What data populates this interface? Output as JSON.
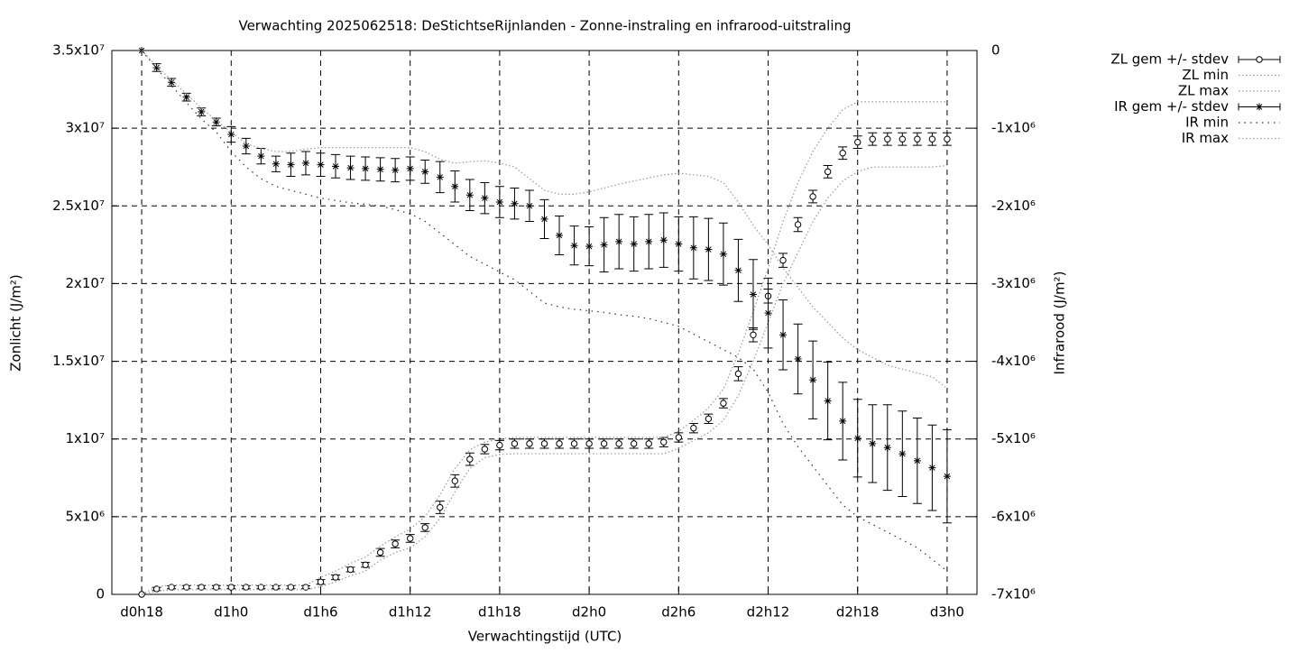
{
  "chart_data": {
    "type": "line",
    "title": "Verwachting 2025062518: DeStichtseRijnlanden - Zonne-instraling en infrarood-uitstraling",
    "x_label": "Verwachtingstijd (UTC)",
    "y_label": "Zonlicht (J/m²)",
    "y2_label": "Infrarood (J/m²)",
    "grid": true,
    "legend": "outside-top-right",
    "xlim": [
      16,
      74
    ],
    "xticks": [
      {
        "value": 18,
        "label": "d0h18"
      },
      {
        "value": 24,
        "label": "d1h0"
      },
      {
        "value": 30,
        "label": "d1h6"
      },
      {
        "value": 36,
        "label": "d1h12"
      },
      {
        "value": 42,
        "label": "d1h18"
      },
      {
        "value": 48,
        "label": "d2h0"
      },
      {
        "value": 54,
        "label": "d2h6"
      },
      {
        "value": 60,
        "label": "d2h12"
      },
      {
        "value": 66,
        "label": "d2h18"
      },
      {
        "value": 72,
        "label": "d3h0"
      }
    ],
    "ylim": [
      0,
      35000000
    ],
    "yticks": [
      0,
      {
        "value": 5000000,
        "label": "5x10⁶"
      },
      {
        "value": 10000000,
        "label": "1x10⁷"
      },
      {
        "value": 15000000,
        "label": "1.5x10⁷"
      },
      {
        "value": 20000000,
        "label": "2x10⁷"
      },
      {
        "value": 25000000,
        "label": "2.5x10⁷"
      },
      {
        "value": 30000000,
        "label": "3x10⁷"
      },
      {
        "value": 35000000,
        "label": "3.5x10⁷"
      }
    ],
    "y2lim": [
      -7000000,
      0
    ],
    "y2ticks": [
      0,
      {
        "value": -1000000,
        "label": "-1x10⁶"
      },
      {
        "value": -2000000,
        "label": "-2x10⁶"
      },
      {
        "value": -3000000,
        "label": "-3x10⁶"
      },
      {
        "value": -4000000,
        "label": "-4x10⁶"
      },
      {
        "value": -5000000,
        "label": "-5x10⁶"
      },
      {
        "value": -6000000,
        "label": "-6x10⁶"
      },
      {
        "value": -7000000,
        "label": "-7x10⁶"
      }
    ],
    "x": [
      18,
      19,
      20,
      21,
      22,
      23,
      24,
      25,
      26,
      27,
      28,
      29,
      30,
      31,
      32,
      33,
      34,
      35,
      36,
      37,
      38,
      39,
      40,
      41,
      42,
      43,
      44,
      45,
      46,
      47,
      48,
      49,
      50,
      51,
      52,
      53,
      54,
      55,
      56,
      57,
      58,
      59,
      60,
      61,
      62,
      63,
      64,
      65,
      66,
      67,
      68,
      69,
      70,
      71,
      72
    ],
    "series": [
      {
        "name": "ZL gem +/- stdev",
        "color": "#000000",
        "style": "errorbars",
        "marker": "circle",
        "values": [
          0,
          350000,
          460000,
          460000,
          460000,
          460000,
          460000,
          460000,
          460000,
          460000,
          460000,
          460000,
          800000,
          1100000,
          1600000,
          1900000,
          2700000,
          3250000,
          3600000,
          4300000,
          5600000,
          7300000,
          8700000,
          9350000,
          9600000,
          9700000,
          9700000,
          9700000,
          9700000,
          9700000,
          9700000,
          9700000,
          9700000,
          9700000,
          9700000,
          9800000,
          10100000,
          10700000,
          11300000,
          12300000,
          14200000,
          16700000,
          19200000,
          21500000,
          23800000,
          25600000,
          27200000,
          28400000,
          29100000,
          29300000,
          29300000,
          29300000,
          29300000,
          29300000,
          29300000
        ],
        "errors": [
          0,
          100000,
          100000,
          100000,
          100000,
          100000,
          100000,
          100000,
          100000,
          100000,
          100000,
          100000,
          150000,
          150000,
          150000,
          150000,
          250000,
          250000,
          250000,
          250000,
          400000,
          400000,
          400000,
          300000,
          300000,
          300000,
          300000,
          300000,
          300000,
          300000,
          300000,
          300000,
          300000,
          300000,
          300000,
          300000,
          300000,
          300000,
          300000,
          300000,
          450000,
          450000,
          450000,
          450000,
          450000,
          400000,
          400000,
          400000,
          400000,
          400000,
          400000,
          400000,
          400000,
          400000,
          400000
        ]
      },
      {
        "name": "ZL min",
        "color": "#999999",
        "style": "dotted",
        "values": [
          0,
          200000,
          300000,
          300000,
          300000,
          300000,
          300000,
          300000,
          300000,
          300000,
          300000,
          300000,
          500000,
          800000,
          1200000,
          1500000,
          2200000,
          2700000,
          3000000,
          3700000,
          4900000,
          6600000,
          8100000,
          8800000,
          9000000,
          9050000,
          9050000,
          9050000,
          9050000,
          9050000,
          9050000,
          9050000,
          9050000,
          9050000,
          9050000,
          9050000,
          9400000,
          9900000,
          10400000,
          11200000,
          12800000,
          15000000,
          17500000,
          20000000,
          22000000,
          24000000,
          25500000,
          26600000,
          27200000,
          27500000,
          27500000,
          27500000,
          27500000,
          27500000,
          27600000
        ]
      },
      {
        "name": "ZL max",
        "color": "#999999",
        "style": "dotted",
        "values": [
          0,
          500000,
          600000,
          600000,
          600000,
          600000,
          600000,
          600000,
          600000,
          600000,
          600000,
          600000,
          1100000,
          1500000,
          2000000,
          2400000,
          3100000,
          3700000,
          4200000,
          5000000,
          6400000,
          8100000,
          9300000,
          9800000,
          10000000,
          10100000,
          10100000,
          10100000,
          10100000,
          10100000,
          10100000,
          10100000,
          10100000,
          10100000,
          10100000,
          10100000,
          10500000,
          11200000,
          12000000,
          13200000,
          15500000,
          18200000,
          21000000,
          24000000,
          26500000,
          28500000,
          30000000,
          31200000,
          31700000,
          31700000,
          31700000,
          31700000,
          31700000,
          31700000,
          31700000
        ]
      },
      {
        "name": "IR gem +/- stdev",
        "color": "#000000",
        "style": "errorbars",
        "marker": "star",
        "axis": "y2",
        "values": [
          0,
          -220000,
          -410000,
          -600000,
          -790000,
          -920000,
          -1080000,
          -1230000,
          -1360000,
          -1460000,
          -1470000,
          -1450000,
          -1470000,
          -1490000,
          -1510000,
          -1520000,
          -1530000,
          -1540000,
          -1520000,
          -1560000,
          -1630000,
          -1750000,
          -1860000,
          -1900000,
          -1950000,
          -1970000,
          -2000000,
          -2170000,
          -2380000,
          -2510000,
          -2520000,
          -2500000,
          -2460000,
          -2490000,
          -2460000,
          -2440000,
          -2490000,
          -2540000,
          -2560000,
          -2620000,
          -2830000,
          -3140000,
          -3380000,
          -3660000,
          -3970000,
          -4240000,
          -4510000,
          -4770000,
          -4990000,
          -5060000,
          -5110000,
          -5190000,
          -5280000,
          -5370000,
          -5480000
        ],
        "errors": [
          0,
          50000,
          50000,
          50000,
          50000,
          50000,
          100000,
          100000,
          100000,
          100000,
          150000,
          150000,
          150000,
          150000,
          150000,
          150000,
          150000,
          150000,
          150000,
          150000,
          200000,
          200000,
          200000,
          200000,
          200000,
          200000,
          200000,
          250000,
          250000,
          250000,
          250000,
          350000,
          350000,
          350000,
          350000,
          350000,
          350000,
          400000,
          400000,
          400000,
          400000,
          450000,
          450000,
          450000,
          450000,
          500000,
          500000,
          500000,
          500000,
          500000,
          550000,
          550000,
          550000,
          550000,
          600000
        ]
      },
      {
        "name": "IR min",
        "color": "#333333",
        "style": "sparse-dotted",
        "axis": "y2",
        "values": [
          0,
          -230000,
          -450000,
          -670000,
          -880000,
          -1050000,
          -1300000,
          -1500000,
          -1650000,
          -1750000,
          -1800000,
          -1850000,
          -1900000,
          -1930000,
          -1960000,
          -1980000,
          -2000000,
          -2050000,
          -2100000,
          -2200000,
          -2350000,
          -2500000,
          -2650000,
          -2750000,
          -2850000,
          -2950000,
          -3100000,
          -3250000,
          -3300000,
          -3330000,
          -3350000,
          -3370000,
          -3400000,
          -3420000,
          -3450000,
          -3500000,
          -3550000,
          -3650000,
          -3750000,
          -3850000,
          -3950000,
          -4100000,
          -4400000,
          -4800000,
          -5100000,
          -5350000,
          -5600000,
          -5850000,
          -6000000,
          -6100000,
          -6200000,
          -6300000,
          -6400000,
          -6550000,
          -6700000
        ]
      },
      {
        "name": "IR max",
        "color": "#999999",
        "style": "dotted",
        "axis": "y2",
        "values": [
          0,
          -200000,
          -380000,
          -560000,
          -740000,
          -900000,
          -1050000,
          -1200000,
          -1260000,
          -1300000,
          -1300000,
          -1270000,
          -1250000,
          -1250000,
          -1250000,
          -1250000,
          -1250000,
          -1250000,
          -1250000,
          -1300000,
          -1400000,
          -1450000,
          -1430000,
          -1420000,
          -1450000,
          -1500000,
          -1650000,
          -1800000,
          -1850000,
          -1850000,
          -1820000,
          -1770000,
          -1720000,
          -1680000,
          -1640000,
          -1600000,
          -1580000,
          -1600000,
          -1620000,
          -1700000,
          -1950000,
          -2250000,
          -2500000,
          -2800000,
          -3050000,
          -3300000,
          -3500000,
          -3700000,
          -3850000,
          -3950000,
          -4050000,
          -4100000,
          -4150000,
          -4200000,
          -4350000
        ]
      }
    ]
  }
}
